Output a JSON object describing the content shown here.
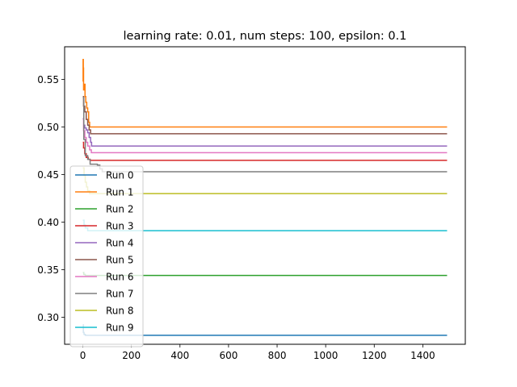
{
  "chart_data": {
    "type": "line",
    "title": "learning rate: 0.01, num steps: 100, epsilon: 0.1",
    "xlabel": "",
    "ylabel": "",
    "xlim": [
      -75,
      1575
    ],
    "ylim": [
      0.2716,
      0.5844
    ],
    "x_ticks": [
      0,
      200,
      400,
      600,
      800,
      1000,
      1200,
      1400
    ],
    "y_ticks": [
      0.3,
      0.35,
      0.4,
      0.45,
      0.5,
      0.55
    ],
    "y_tick_labels": [
      "0.30",
      "0.35",
      "0.40",
      "0.45",
      "0.50",
      "0.55"
    ],
    "grid": false,
    "legend_position": "lower-left",
    "series": [
      {
        "name": "Run 0",
        "color": "#1f77b4",
        "points": [
          [
            0,
            0.292
          ],
          [
            2,
            0.284
          ],
          [
            5,
            0.282
          ],
          [
            10,
            0.281
          ],
          [
            20,
            0.281
          ],
          [
            40,
            0.281
          ],
          [
            1500,
            0.281
          ]
        ]
      },
      {
        "name": "Run 1",
        "color": "#ff7f0e",
        "points": [
          [
            0,
            0.548
          ],
          [
            1,
            0.571
          ],
          [
            2,
            0.562
          ],
          [
            3,
            0.539
          ],
          [
            6,
            0.545
          ],
          [
            9,
            0.532
          ],
          [
            12,
            0.526
          ],
          [
            16,
            0.52
          ],
          [
            20,
            0.516
          ],
          [
            24,
            0.505
          ],
          [
            28,
            0.5
          ],
          [
            1500,
            0.5
          ]
        ]
      },
      {
        "name": "Run 2",
        "color": "#2ca02c",
        "points": [
          [
            0,
            0.347
          ],
          [
            4,
            0.345
          ],
          [
            10,
            0.344
          ],
          [
            1500,
            0.344
          ]
        ]
      },
      {
        "name": "Run 3",
        "color": "#d62728",
        "points": [
          [
            0,
            0.484
          ],
          [
            3,
            0.478
          ],
          [
            8,
            0.472
          ],
          [
            14,
            0.468
          ],
          [
            22,
            0.466
          ],
          [
            30,
            0.465
          ],
          [
            1500,
            0.465
          ]
        ]
      },
      {
        "name": "Run 4",
        "color": "#9467bd",
        "points": [
          [
            0,
            0.509
          ],
          [
            4,
            0.502
          ],
          [
            8,
            0.499
          ],
          [
            14,
            0.497
          ],
          [
            20,
            0.494
          ],
          [
            26,
            0.489
          ],
          [
            32,
            0.484
          ],
          [
            36,
            0.48
          ],
          [
            1500,
            0.48
          ]
        ]
      },
      {
        "name": "Run 5",
        "color": "#8c564b",
        "points": [
          [
            0,
            0.532
          ],
          [
            3,
            0.522
          ],
          [
            8,
            0.516
          ],
          [
            14,
            0.508
          ],
          [
            20,
            0.502
          ],
          [
            26,
            0.497
          ],
          [
            32,
            0.493
          ],
          [
            1500,
            0.493
          ]
        ]
      },
      {
        "name": "Run 6",
        "color": "#e377c2",
        "points": [
          [
            0,
            0.508
          ],
          [
            3,
            0.496
          ],
          [
            8,
            0.489
          ],
          [
            14,
            0.484
          ],
          [
            20,
            0.48
          ],
          [
            28,
            0.476
          ],
          [
            35,
            0.473
          ],
          [
            1500,
            0.473
          ]
        ]
      },
      {
        "name": "Run 7",
        "color": "#7f7f7f",
        "points": [
          [
            0,
            0.531
          ],
          [
            4,
            0.487
          ],
          [
            10,
            0.47
          ],
          [
            20,
            0.466
          ],
          [
            30,
            0.461
          ],
          [
            60,
            0.46
          ],
          [
            70,
            0.456
          ],
          [
            80,
            0.453
          ],
          [
            1500,
            0.453
          ]
        ]
      },
      {
        "name": "Run 8",
        "color": "#bcbd22",
        "points": [
          [
            0,
            0.457
          ],
          [
            5,
            0.449
          ],
          [
            10,
            0.442
          ],
          [
            15,
            0.437
          ],
          [
            20,
            0.433
          ],
          [
            28,
            0.43
          ],
          [
            1500,
            0.43
          ]
        ]
      },
      {
        "name": "Run 9",
        "color": "#17becf",
        "points": [
          [
            0,
            0.402
          ],
          [
            5,
            0.397
          ],
          [
            10,
            0.394
          ],
          [
            20,
            0.391
          ],
          [
            1500,
            0.391
          ]
        ]
      }
    ]
  }
}
